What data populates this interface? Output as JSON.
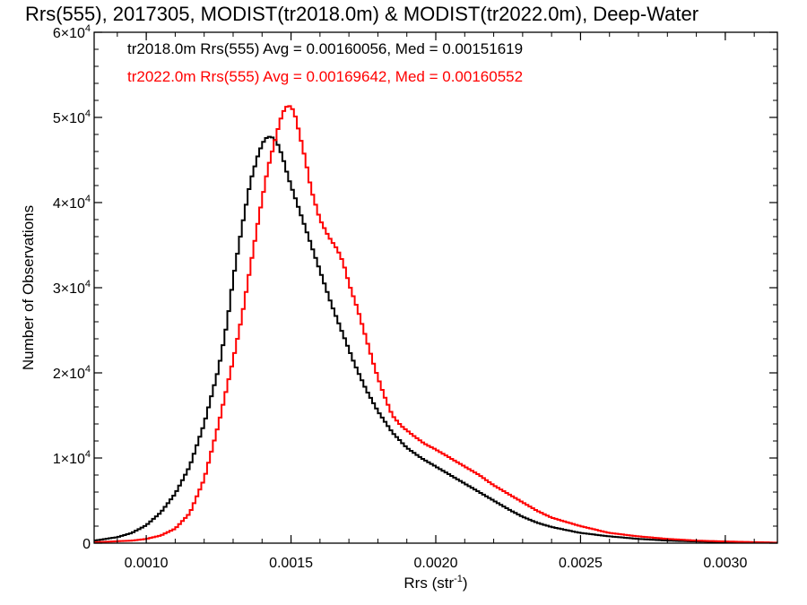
{
  "chart_data": {
    "type": "line",
    "step": true,
    "title": "Rrs(555), 2017305, MODIST(tr2018.0m) & MODIST(tr2022.0m), Deep-Water",
    "xlabel": "Rrs (str",
    "xlabel_sup": "-1",
    "xlabel_end": ")",
    "ylabel": "Number of Observations",
    "xlim": [
      0.00082,
      0.00318
    ],
    "ylim": [
      0,
      60000
    ],
    "x_ticks": [
      {
        "value": 0.001,
        "label": "0.0010"
      },
      {
        "value": 0.0015,
        "label": "0.0015"
      },
      {
        "value": 0.002,
        "label": "0.0020"
      },
      {
        "value": 0.0025,
        "label": "0.0025"
      },
      {
        "value": 0.003,
        "label": "0.0030"
      }
    ],
    "y_ticks": [
      {
        "value": 0,
        "label": "0",
        "sup": ""
      },
      {
        "value": 10000,
        "label": "1×10",
        "sup": "4"
      },
      {
        "value": 20000,
        "label": "2×10",
        "sup": "4"
      },
      {
        "value": 30000,
        "label": "3×10",
        "sup": "4"
      },
      {
        "value": 40000,
        "label": "4×10",
        "sup": "4"
      },
      {
        "value": 50000,
        "label": "5×10",
        "sup": "4"
      },
      {
        "value": 60000,
        "label": "6×10",
        "sup": "4"
      }
    ],
    "annotations": [
      {
        "text": "tr2018.0m Rrs(555) Avg = 0.00160056, Med = 0.00151619",
        "color": "#000000"
      },
      {
        "text": "tr2022.0m Rrs(555) Avg = 0.00169642, Med = 0.00160552",
        "color": "#ff0000"
      }
    ],
    "series": [
      {
        "color": "#000000",
        "x": [
          0.00082,
          0.0009,
          0.00095,
          0.001,
          0.00105,
          0.0011,
          0.00115,
          0.0012,
          0.00125,
          0.00128,
          0.0013,
          0.00133,
          0.00136,
          0.00139,
          0.00141,
          0.00143,
          0.00145,
          0.00147,
          0.00149,
          0.00152,
          0.00155,
          0.00158,
          0.00161,
          0.00164,
          0.00168,
          0.00172,
          0.00176,
          0.0018,
          0.00185,
          0.0019,
          0.00195,
          0.002,
          0.00205,
          0.0021,
          0.00215,
          0.0022,
          0.00225,
          0.0023,
          0.00235,
          0.0024,
          0.0025,
          0.0026,
          0.0027,
          0.0028,
          0.0029,
          0.003,
          0.0031,
          0.00318
        ],
        "y": [
          300,
          700,
          1200,
          2100,
          3600,
          5800,
          9000,
          14000,
          20500,
          26000,
          31000,
          37000,
          42500,
          46000,
          47500,
          47800,
          47200,
          45500,
          43000,
          40000,
          37000,
          34000,
          31000,
          28000,
          24500,
          21000,
          18000,
          15500,
          13000,
          11200,
          10000,
          9000,
          8000,
          7000,
          6000,
          5000,
          4000,
          3100,
          2400,
          1900,
          1200,
          800,
          500,
          300,
          200,
          120,
          80,
          50
        ]
      },
      {
        "color": "#ff0000",
        "x": [
          0.00082,
          0.00095,
          0.001,
          0.00105,
          0.0011,
          0.00115,
          0.0012,
          0.00125,
          0.0013,
          0.00133,
          0.00136,
          0.00139,
          0.00142,
          0.00145,
          0.00147,
          0.00149,
          0.00151,
          0.00153,
          0.00155,
          0.00157,
          0.0016,
          0.00163,
          0.00166,
          0.00168,
          0.0017,
          0.00173,
          0.00176,
          0.00179,
          0.00182,
          0.00185,
          0.00188,
          0.00192,
          0.00196,
          0.002,
          0.00205,
          0.0021,
          0.00215,
          0.0022,
          0.00225,
          0.0023,
          0.00235,
          0.0024,
          0.0025,
          0.0026,
          0.0027,
          0.0028,
          0.0029,
          0.003,
          0.0031,
          0.00318
        ],
        "y": [
          100,
          300,
          500,
          900,
          1700,
          3500,
          7500,
          14000,
          21500,
          26500,
          32500,
          38500,
          44000,
          48000,
          50500,
          51500,
          50800,
          48000,
          45000,
          41500,
          38000,
          36000,
          34500,
          33000,
          30500,
          27500,
          24000,
          20500,
          17500,
          15000,
          13800,
          12700,
          11700,
          11000,
          10000,
          9000,
          8000,
          6800,
          5800,
          4800,
          3800,
          3000,
          2000,
          1200,
          800,
          500,
          300,
          200,
          120,
          60
        ]
      }
    ]
  }
}
